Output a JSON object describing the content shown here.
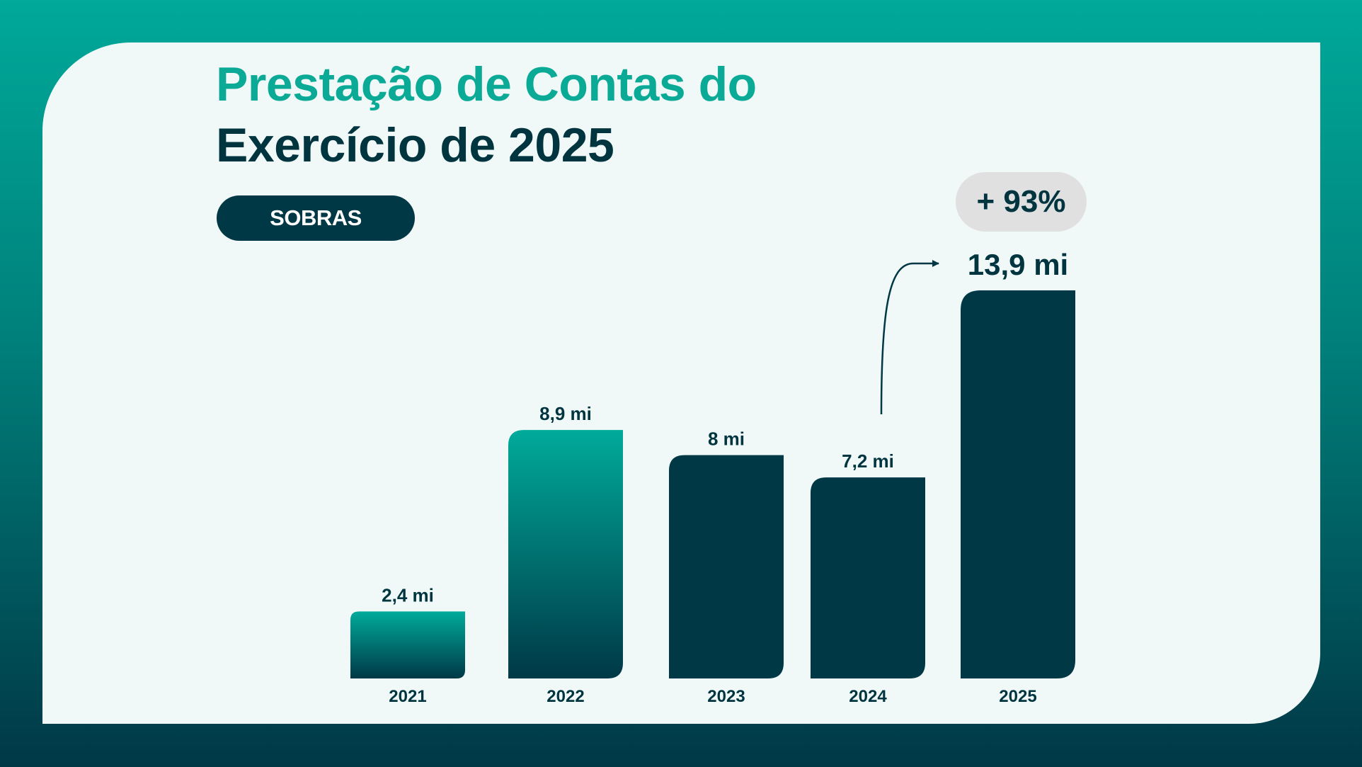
{
  "title_line1": "Prestação de Contas do",
  "title_line2": "Exercício de 2025",
  "tag": "SOBRAS",
  "growth_badge": "+ 93%",
  "colors": {
    "teal": "#00a99a",
    "dark": "#003846",
    "text_dark": "#003540",
    "card_bg": "#f1f9f8",
    "badge_bg": "#e0e0e0"
  },
  "chart_data": {
    "type": "bar",
    "title": "Sobras",
    "xlabel": "",
    "ylabel": "",
    "ylim": [
      0,
      13.9
    ],
    "grid": false,
    "categories": [
      "2021",
      "2022",
      "2023",
      "2024",
      "2025"
    ],
    "values": [
      2.4,
      8.9,
      8,
      7.2,
      13.9
    ],
    "value_labels": [
      "2,4 mi",
      "8,9 mi",
      "8 mi",
      "7,2 mi",
      "13,9 mi"
    ],
    "bar_styles": [
      "gradient",
      "gradient",
      "dark",
      "dark",
      "dark"
    ],
    "annotation": {
      "text": "+ 93%",
      "from": "2024",
      "to": "2025"
    }
  }
}
